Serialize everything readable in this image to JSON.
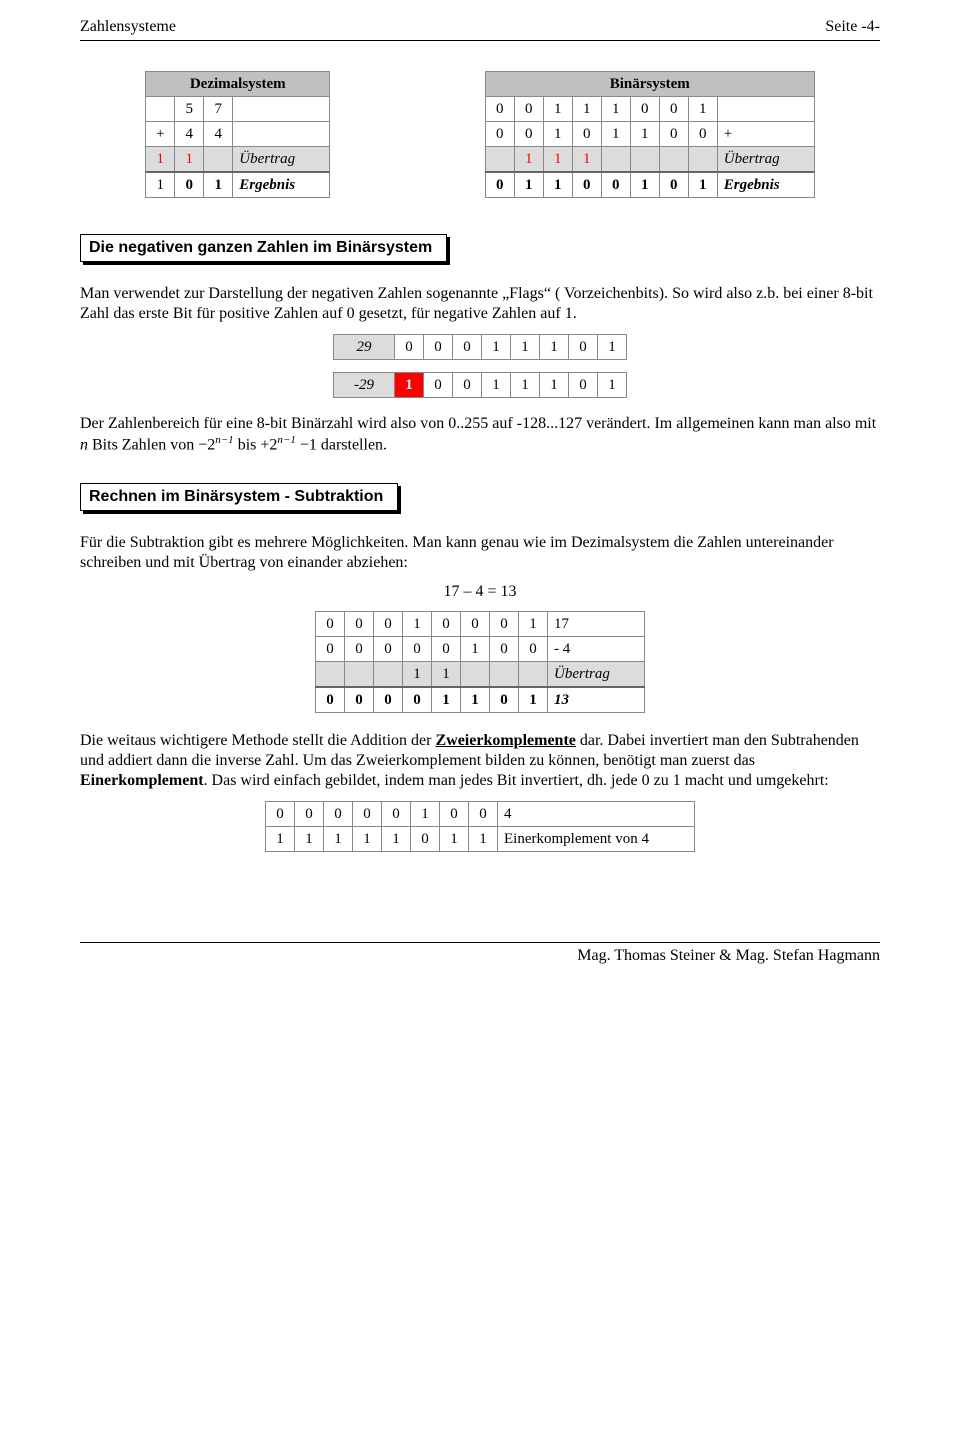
{
  "header": {
    "left": "Zahlensysteme",
    "right": "Seite -4-"
  },
  "footer": {
    "right": "Mag. Thomas Steiner & Mag. Stefan Hagmann"
  },
  "colors": {
    "text": "#000000",
    "background": "#ffffff",
    "grey_header": "#c0c0c0",
    "grey_light": "#dcdcdc",
    "red": "#ff0000",
    "cell_border": "#888888"
  },
  "addition_tables": {
    "dec": {
      "title": "Dezimalsystem",
      "rows": [
        {
          "cells": [
            "",
            "5",
            "7"
          ],
          "bg": null
        },
        {
          "cells": [
            "+",
            "4",
            "4"
          ],
          "bg": null
        },
        {
          "cells": [
            "1",
            "1",
            ""
          ],
          "label": "Übertrag",
          "bg": "grey_light",
          "red_cells": [
            0,
            1
          ]
        },
        {
          "cells": [
            "1",
            "0",
            "1"
          ],
          "label": "Ergebnis",
          "bg": null,
          "bold": true
        }
      ]
    },
    "bin": {
      "title": "Binärsystem",
      "rows": [
        {
          "cells": [
            "0",
            "0",
            "1",
            "1",
            "1",
            "0",
            "0",
            "1"
          ],
          "bg": null
        },
        {
          "cells": [
            "0",
            "0",
            "1",
            "0",
            "1",
            "1",
            "0",
            "0"
          ],
          "label_right": "+",
          "bg": null
        },
        {
          "cells": [
            "",
            "1",
            "1",
            "1",
            "",
            "",
            "",
            ""
          ],
          "label_right": "Übertrag",
          "bg": "grey_light",
          "red_cells": [
            1,
            2,
            3
          ]
        },
        {
          "cells": [
            "0",
            "1",
            "1",
            "0",
            "0",
            "1",
            "0",
            "1"
          ],
          "label_right": "Ergebnis",
          "bg": null,
          "bold": true
        }
      ]
    }
  },
  "section_neg_title": "Die negativen ganzen Zahlen im Binärsystem",
  "neg_para1": "Man verwendet zur Darstellung der negativen Zahlen sogenannte „Flags“ ( Vorzeichenbits). So wird also z.b. bei einer 8-bit Zahl das erste Bit für positive Zahlen auf 0 gesetzt, für negative Zahlen auf 1.",
  "sign_tables": {
    "pos": {
      "label": "29",
      "bits": [
        "0",
        "0",
        "0",
        "1",
        "1",
        "1",
        "0",
        "1"
      ],
      "label_bg": "grey_light",
      "flag_color": null
    },
    "neg": {
      "label": "-29",
      "bits": [
        "1",
        "0",
        "0",
        "1",
        "1",
        "1",
        "0",
        "1"
      ],
      "label_bg": "grey_light",
      "flag_color": "red"
    }
  },
  "neg_para2_a": "Der Zahlenbereich für eine 8-bit Binärzahl wird also von  0..255 auf  -128...127 verändert. Im allgemeinen kann man also mit ",
  "neg_para2_n": "n",
  "neg_para2_b": " Bits Zahlen von  ",
  "neg_formula_1": "−2",
  "neg_formula_exp": "n−1",
  "neg_para2_c": "  bis  ",
  "neg_formula_2": "+2",
  "neg_para2_d": " −1  darstellen.",
  "section_sub_title": "Rechnen im Binärsystem - Subtraktion",
  "sub_para1": "Für die Subtraktion gibt es mehrere Möglichkeiten. Man kann genau wie im Dezimalsystem die Zahlen untereinander schreiben und mit Übertrag von einander abziehen:",
  "sub_eq": "17 – 4 = 13",
  "sub_table": {
    "type": "table",
    "columns": 9,
    "rows": [
      {
        "cells": [
          "0",
          "0",
          "0",
          "1",
          "0",
          "0",
          "0",
          "1"
        ],
        "label": "17"
      },
      {
        "cells": [
          "0",
          "0",
          "0",
          "0",
          "0",
          "1",
          "0",
          "0"
        ],
        "label": "- 4"
      },
      {
        "cells": [
          "",
          "",
          "",
          "1",
          "1",
          "",
          "",
          ""
        ],
        "label": "Übertrag",
        "bg": "grey_light",
        "italic_label": true
      },
      {
        "cells": [
          "0",
          "0",
          "0",
          "0",
          "1",
          "1",
          "0",
          "1"
        ],
        "label": "13",
        "bold": true,
        "italic_label": true
      }
    ]
  },
  "sub_para2_a": "Die weitaus wichtigere Methode stellt die Addition der ",
  "sub_para2_z": "Zweierkomplemente",
  "sub_para2_b": " dar. Dabei invertiert man den Subtrahenden und addiert dann die inverse Zahl. Um das Zweierkomplement bilden zu können, benötigt man zuerst das ",
  "sub_para2_e": "Einerkomplement",
  "sub_para2_c": ". Das wird einfach gebildet, indem man jedes Bit invertiert, dh. jede 0 zu 1 macht und umgekehrt:",
  "comp_table": {
    "rows": [
      {
        "cells": [
          "0",
          "0",
          "0",
          "0",
          "0",
          "1",
          "0",
          "0"
        ],
        "label": "4"
      },
      {
        "cells": [
          "1",
          "1",
          "1",
          "1",
          "1",
          "0",
          "1",
          "1"
        ],
        "label": "Einerkomplement von 4"
      }
    ]
  }
}
